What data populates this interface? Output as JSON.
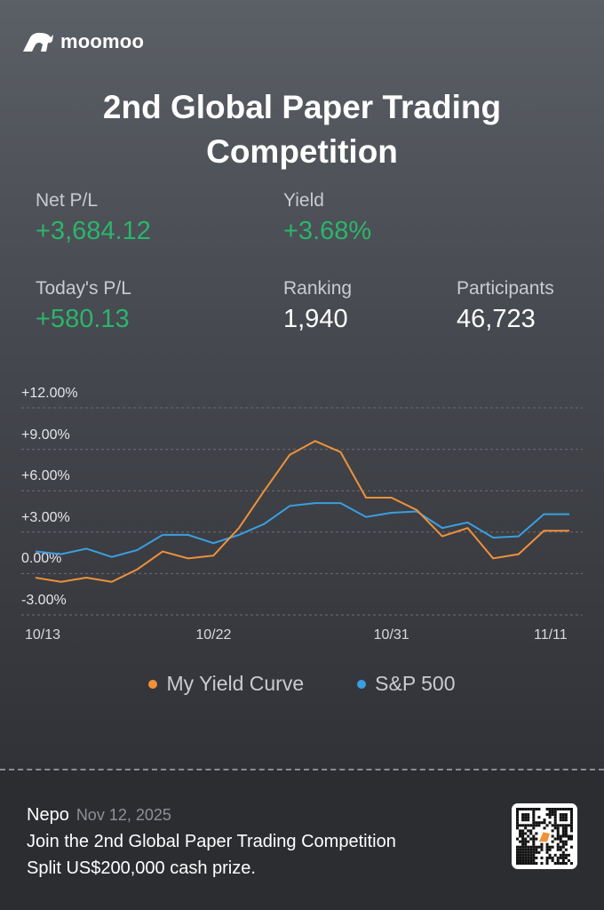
{
  "brand": {
    "name": "moomoo"
  },
  "title": "2nd Global Paper Trading Competition",
  "stats": {
    "net_pl": {
      "label": "Net P/L",
      "value": "+3,684.12"
    },
    "yield": {
      "label": "Yield",
      "value": "+3.68%"
    },
    "today_pl": {
      "label": "Today's P/L",
      "value": "+580.13"
    },
    "ranking": {
      "label": "Ranking",
      "value": "1,940"
    },
    "participants": {
      "label": "Participants",
      "value": "46,723"
    }
  },
  "colors": {
    "green": "#2bb56c",
    "orange": "#f0913a",
    "blue": "#3a9fe0"
  },
  "chart_data": {
    "type": "line",
    "y_ticks": [
      "+12.00%",
      "+9.00%",
      "+6.00%",
      "+3.00%",
      "0.00%",
      "-3.00%"
    ],
    "ylim": [
      -3,
      12
    ],
    "x_labels": [
      {
        "index": 0,
        "label": "10/13"
      },
      {
        "index": 7,
        "label": "10/22"
      },
      {
        "index": 14,
        "label": "10/31"
      },
      {
        "index": 21,
        "label": "11/11"
      }
    ],
    "grid": true,
    "legend_position": "bottom",
    "series": [
      {
        "name": "My Yield Curve",
        "color": "#f0913a",
        "values": [
          -0.3,
          -0.6,
          -0.3,
          -0.6,
          0.3,
          1.6,
          1.1,
          1.3,
          3.3,
          6.0,
          8.6,
          9.6,
          8.8,
          5.5,
          5.5,
          4.6,
          2.7,
          3.3,
          1.1,
          1.4,
          3.1,
          3.1
        ]
      },
      {
        "name": "S&P 500",
        "color": "#3a9fe0",
        "values": [
          1.6,
          1.4,
          1.8,
          1.2,
          1.7,
          2.8,
          2.8,
          2.2,
          2.8,
          3.6,
          4.9,
          5.1,
          5.1,
          4.1,
          4.4,
          4.5,
          3.3,
          3.7,
          2.6,
          2.7,
          4.3,
          4.3
        ]
      }
    ]
  },
  "footer": {
    "user": "Nepo",
    "date": "Nov 12, 2025",
    "line1": "Join the 2nd Global Paper Trading Competition",
    "line2": "Split US$200,000 cash prize."
  }
}
